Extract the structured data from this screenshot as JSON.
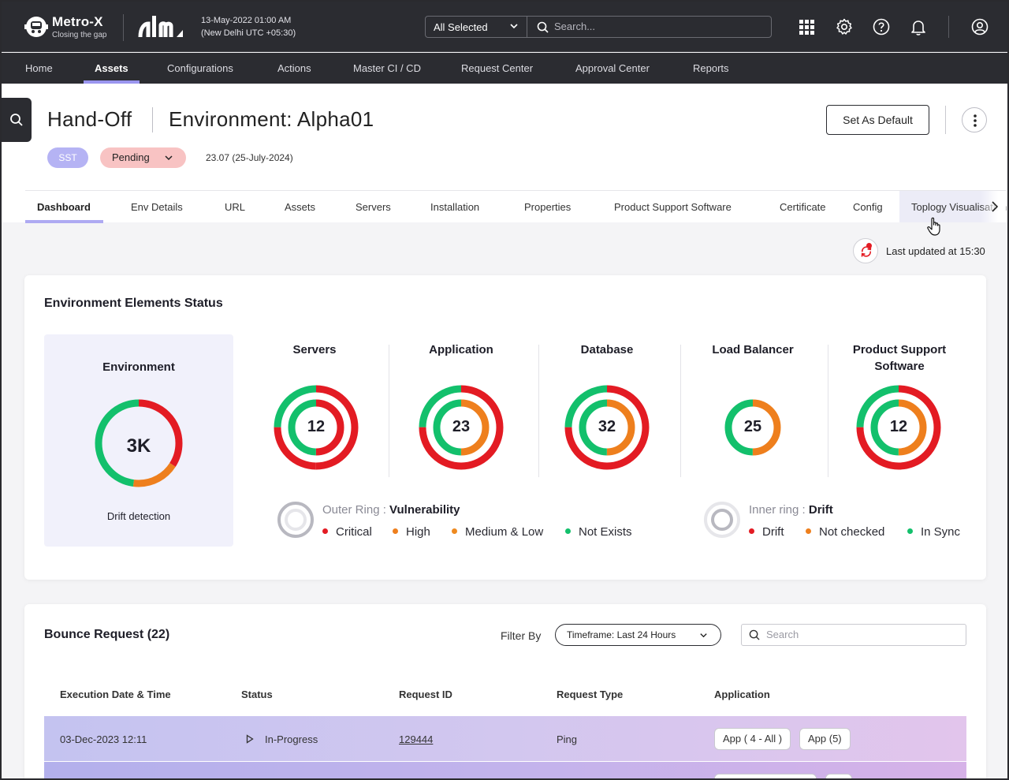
{
  "topbar": {
    "brand": "Metro-X",
    "tagline": "Closing the gap",
    "datetime_line1": "13-May-2022 01:00 AM",
    "datetime_line2": "(New Delhi UTC +05:30)",
    "scope_select": "All Selected",
    "search_placeholder": "Search...",
    "icons": [
      "apps-grid-icon",
      "gear-icon",
      "help-icon",
      "bell-icon",
      "user-icon"
    ]
  },
  "nav": {
    "items": [
      "Home",
      "Assets",
      "Configurations",
      "Actions",
      "Master CI / CD",
      "Request Center",
      "Approval Center",
      "Reports"
    ],
    "active": "Assets"
  },
  "header": {
    "title": "Hand-Off",
    "environment": "Environment: Alpha01",
    "badge_sst": "SST",
    "status": "Pending",
    "version": "23.07 (25-July-2024)",
    "set_default_label": "Set As Default"
  },
  "tabs": {
    "items": [
      "Dashboard",
      "Env Details",
      "URL",
      "Assets",
      "Servers",
      "Installation",
      "Properties",
      "Product Support Software",
      "Certificate",
      "Config",
      "Toplogy Visualisation"
    ],
    "active": "Dashboard"
  },
  "refresh": {
    "last_updated": "Last updated at 15:30"
  },
  "env_status": {
    "title": "Environment Elements Status",
    "environment": {
      "label": "Environment",
      "value": "3K",
      "caption": "Drift detection",
      "ring": [
        {
          "status": "Critical",
          "fraction": 0.34
        },
        {
          "status": "High",
          "fraction": 0.18
        },
        {
          "status": "Not Exists",
          "fraction": 0.48
        }
      ]
    },
    "columns": [
      {
        "label": "Servers",
        "value": "12",
        "outer": [
          {
            "status": "Critical",
            "fraction": 0.5
          },
          {
            "status": "Critical",
            "fraction": 0.25
          },
          {
            "status": "Not Exists",
            "fraction": 0.25
          }
        ],
        "inner": [
          {
            "status": "Drift",
            "fraction": 0.5
          },
          {
            "status": "In Sync",
            "fraction": 0.5
          }
        ]
      },
      {
        "label": "Application",
        "value": "23",
        "outer": [
          {
            "status": "Critical",
            "fraction": 0.75
          },
          {
            "status": "Not Exists",
            "fraction": 0.25
          }
        ],
        "inner": [
          {
            "status": "Not checked",
            "fraction": 0.5
          },
          {
            "status": "In Sync",
            "fraction": 0.5
          }
        ]
      },
      {
        "label": "Database",
        "value": "32",
        "outer": [
          {
            "status": "Critical",
            "fraction": 0.75
          },
          {
            "status": "Not Exists",
            "fraction": 0.25
          }
        ],
        "inner": [
          {
            "status": "Not checked",
            "fraction": 0.5
          },
          {
            "status": "In Sync",
            "fraction": 0.5
          }
        ]
      },
      {
        "label": "Load Balancer",
        "value": "25",
        "outer": [],
        "inner": [
          {
            "status": "Not checked",
            "fraction": 0.5
          },
          {
            "status": "In Sync",
            "fraction": 0.5
          }
        ]
      },
      {
        "label": "Product Support Software",
        "value": "12",
        "outer": [
          {
            "status": "Critical",
            "fraction": 0.75
          },
          {
            "status": "Not Exists",
            "fraction": 0.25
          }
        ],
        "inner": [
          {
            "status": "Not checked",
            "fraction": 0.5
          },
          {
            "status": "In Sync",
            "fraction": 0.5
          }
        ]
      }
    ],
    "outer_legend": {
      "prefix": "Outer Ring : ",
      "name": "Vulnerability",
      "items": [
        {
          "label": "Critical",
          "color": "#e31b23"
        },
        {
          "label": "High",
          "color": "#ee7f1d"
        },
        {
          "label": "Medium & Low",
          "color": "#ee8a20"
        },
        {
          "label": "Not Exists",
          "color": "#13c06c"
        }
      ]
    },
    "inner_legend": {
      "prefix": "Inner ring : ",
      "name": "Drift",
      "items": [
        {
          "label": "Drift",
          "color": "#e31b23"
        },
        {
          "label": "Not checked",
          "color": "#ee7f1d"
        },
        {
          "label": "In Sync",
          "color": "#13c06c"
        }
      ]
    }
  },
  "colors": {
    "critical": "#e31b23",
    "high": "#ee7f1d",
    "in_sync": "#13c06c",
    "accent": "#9a95ef"
  },
  "bounce": {
    "title": "Bounce Request (22)",
    "filter_label": "Filter By",
    "timeframe": "Timeframe: Last 24 Hours",
    "search_placeholder": "Search",
    "columns": [
      "Execution Date & Time",
      "Status",
      "Request ID",
      "Request Type",
      "Application"
    ],
    "rows": [
      {
        "datetime": "03-Dec-2023  12:11",
        "status": "In-Progress",
        "request_id": "129444",
        "request_type": "Ping",
        "apps": [
          "App ( 4 - All )",
          "App (5)"
        ]
      }
    ]
  }
}
